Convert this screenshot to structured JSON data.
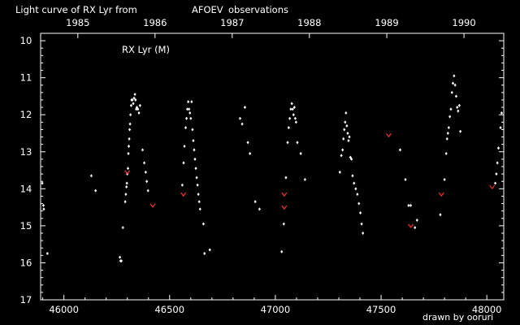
{
  "title": {
    "prefix": "Light curve of RX Lyr from",
    "source": "AFOEV",
    "suffix": "observations",
    "source_color": "#ffff00"
  },
  "credit": "drawn by ooruri",
  "credit_color": "#33cccc",
  "chart_data": {
    "type": "scatter",
    "title": "Light curve of RX Lyr from AFOEV observations",
    "annotation": "RX Lyr (M)",
    "xlabel": "",
    "ylabel": "",
    "xlim": [
      45890,
      48080
    ],
    "ylim": [
      17,
      9.8
    ],
    "y_inverted": true,
    "grid": false,
    "x_ticks": [
      46000,
      46500,
      47000,
      47500,
      48000
    ],
    "y_ticks": [
      10,
      11,
      12,
      13,
      14,
      15,
      16,
      17
    ],
    "top_axis": {
      "labels": [
        "1985",
        "1986",
        "1987",
        "1988",
        "1989",
        "1990"
      ],
      "x": [
        46066,
        46431,
        46796,
        47161,
        47527,
        47892
      ]
    },
    "series": [
      {
        "color": "#ffffff",
        "marker": "diamond",
        "points": [
          [
            45898,
            13.85
          ],
          [
            45903,
            14.45
          ],
          [
            45905,
            14.55
          ],
          [
            45922,
            15.75
          ],
          [
            46130,
            13.65
          ],
          [
            46150,
            14.05
          ],
          [
            46265,
            15.85
          ],
          [
            46268,
            15.95
          ],
          [
            46272,
            15.95
          ],
          [
            46279,
            15.05
          ],
          [
            46290,
            14.35
          ],
          [
            46293,
            14.15
          ],
          [
            46296,
            13.95
          ],
          [
            46298,
            13.85
          ],
          [
            46300,
            13.6
          ],
          [
            46303,
            13.45
          ],
          [
            46305,
            13.05
          ],
          [
            46307,
            12.85
          ],
          [
            46309,
            12.65
          ],
          [
            46311,
            12.4
          ],
          [
            46313,
            12.25
          ],
          [
            46315,
            12.0
          ],
          [
            46318,
            11.75
          ],
          [
            46320,
            11.6
          ],
          [
            46324,
            11.6
          ],
          [
            46328,
            11.7
          ],
          [
            46332,
            11.55
          ],
          [
            46336,
            11.45
          ],
          [
            46339,
            11.6
          ],
          [
            46342,
            11.85
          ],
          [
            46345,
            11.8
          ],
          [
            46350,
            11.85
          ],
          [
            46355,
            11.95
          ],
          [
            46360,
            11.75
          ],
          [
            46372,
            12.95
          ],
          [
            46380,
            13.3
          ],
          [
            46387,
            13.55
          ],
          [
            46392,
            13.8
          ],
          [
            46398,
            14.05
          ],
          [
            46560,
            13.9
          ],
          [
            46566,
            13.3
          ],
          [
            46570,
            12.85
          ],
          [
            46576,
            12.35
          ],
          [
            46580,
            12.1
          ],
          [
            46584,
            11.85
          ],
          [
            46588,
            11.65
          ],
          [
            46592,
            11.85
          ],
          [
            46596,
            11.95
          ],
          [
            46600,
            12.1
          ],
          [
            46604,
            11.65
          ],
          [
            46608,
            12.4
          ],
          [
            46612,
            12.7
          ],
          [
            46616,
            12.95
          ],
          [
            46620,
            13.2
          ],
          [
            46624,
            13.45
          ],
          [
            46628,
            13.7
          ],
          [
            46632,
            13.9
          ],
          [
            46636,
            14.15
          ],
          [
            46640,
            14.35
          ],
          [
            46644,
            14.55
          ],
          [
            46660,
            14.95
          ],
          [
            46665,
            15.75
          ],
          [
            46690,
            15.65
          ],
          [
            46833,
            12.1
          ],
          [
            46843,
            12.25
          ],
          [
            46856,
            11.8
          ],
          [
            46870,
            12.75
          ],
          [
            46880,
            13.05
          ],
          [
            46905,
            14.35
          ],
          [
            46925,
            14.55
          ],
          [
            47030,
            15.7
          ],
          [
            47040,
            14.95
          ],
          [
            47050,
            13.7
          ],
          [
            47058,
            12.75
          ],
          [
            47063,
            12.35
          ],
          [
            47068,
            12.1
          ],
          [
            47073,
            11.85
          ],
          [
            47078,
            11.7
          ],
          [
            47082,
            11.85
          ],
          [
            47086,
            12.0
          ],
          [
            47090,
            11.8
          ],
          [
            47094,
            12.1
          ],
          [
            47098,
            12.2
          ],
          [
            47104,
            12.75
          ],
          [
            47120,
            13.05
          ],
          [
            47140,
            13.75
          ],
          [
            47305,
            13.55
          ],
          [
            47312,
            13.1
          ],
          [
            47318,
            12.95
          ],
          [
            47322,
            12.65
          ],
          [
            47326,
            12.4
          ],
          [
            47330,
            12.2
          ],
          [
            47334,
            11.95
          ],
          [
            47338,
            12.3
          ],
          [
            47342,
            12.5
          ],
          [
            47346,
            12.7
          ],
          [
            47350,
            12.6
          ],
          [
            47355,
            13.15
          ],
          [
            47360,
            13.2
          ],
          [
            47365,
            13.65
          ],
          [
            47372,
            13.85
          ],
          [
            47380,
            14.0
          ],
          [
            47388,
            14.15
          ],
          [
            47395,
            14.4
          ],
          [
            47402,
            14.65
          ],
          [
            47408,
            14.95
          ],
          [
            47414,
            15.2
          ],
          [
            47590,
            12.95
          ],
          [
            47615,
            13.75
          ],
          [
            47630,
            14.45
          ],
          [
            47640,
            14.45
          ],
          [
            47660,
            15.05
          ],
          [
            47670,
            14.85
          ],
          [
            47780,
            14.7
          ],
          [
            47800,
            13.75
          ],
          [
            47808,
            13.05
          ],
          [
            47812,
            12.65
          ],
          [
            47816,
            12.5
          ],
          [
            47820,
            12.35
          ],
          [
            47825,
            12.05
          ],
          [
            47830,
            11.85
          ],
          [
            47835,
            11.4
          ],
          [
            47840,
            11.15
          ],
          [
            47845,
            10.95
          ],
          [
            47850,
            11.2
          ],
          [
            47855,
            11.5
          ],
          [
            47860,
            11.8
          ],
          [
            47864,
            11.9
          ],
          [
            47870,
            11.75
          ],
          [
            47875,
            12.45
          ],
          [
            48040,
            13.85
          ],
          [
            48045,
            13.6
          ],
          [
            48050,
            13.3
          ],
          [
            48055,
            12.9
          ],
          [
            48065,
            12.35
          ],
          [
            48070,
            11.95
          ]
        ]
      },
      {
        "color": "#ff3333",
        "marker": "v",
        "points": [
          [
            46300,
            13.55
          ],
          [
            46420,
            14.45
          ],
          [
            46565,
            14.15
          ],
          [
            47042,
            14.15
          ],
          [
            47042,
            14.5
          ],
          [
            47536,
            12.55
          ],
          [
            47640,
            15.0
          ],
          [
            47785,
            14.15
          ],
          [
            48025,
            13.95
          ]
        ]
      }
    ]
  }
}
